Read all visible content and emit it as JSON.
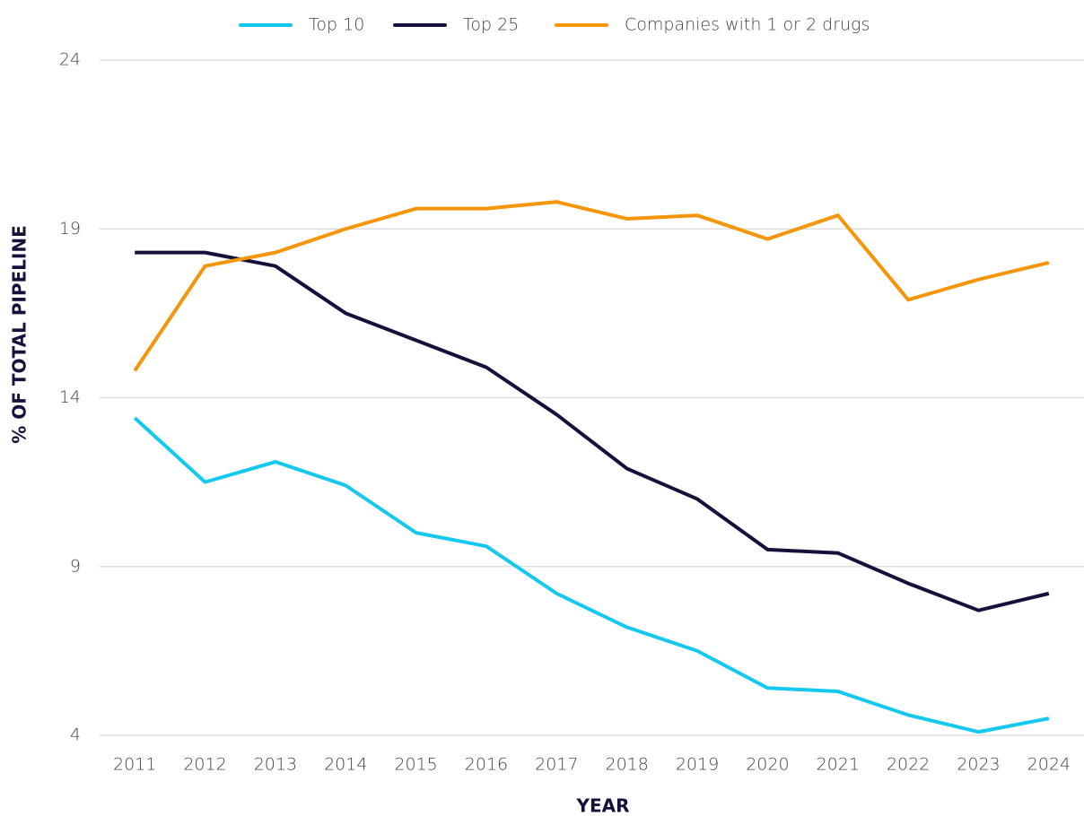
{
  "chart_data": {
    "type": "line",
    "x_label": "YEAR",
    "y_label": "% OF TOTAL PIPELINE",
    "categories": [
      "2011",
      "2012",
      "2013",
      "2014",
      "2015",
      "2016",
      "2017",
      "2018",
      "2019",
      "2020",
      "2021",
      "2022",
      "2023",
      "2024"
    ],
    "series": [
      {
        "name": "Top 10",
        "color": "#14c8f0",
        "values": [
          13.4,
          11.5,
          12.1,
          11.4,
          10.0,
          9.6,
          8.2,
          7.2,
          6.5,
          5.4,
          5.3,
          4.6,
          4.1,
          4.5
        ]
      },
      {
        "name": "Top 25",
        "color": "#14123a",
        "values": [
          18.3,
          18.3,
          17.9,
          16.5,
          15.7,
          14.9,
          13.5,
          11.9,
          11.0,
          9.5,
          9.4,
          8.5,
          7.7,
          8.2
        ]
      },
      {
        "name": "Companies with 1 or 2 drugs",
        "color": "#f5960a",
        "values": [
          14.8,
          17.9,
          18.3,
          19.0,
          19.6,
          19.6,
          19.8,
          19.3,
          19.4,
          18.7,
          19.4,
          16.9,
          17.5,
          18.0
        ]
      }
    ],
    "ylim": [
      4,
      24
    ],
    "yticks": [
      4,
      9,
      14,
      19,
      24
    ],
    "grid": true,
    "legend": "top"
  }
}
